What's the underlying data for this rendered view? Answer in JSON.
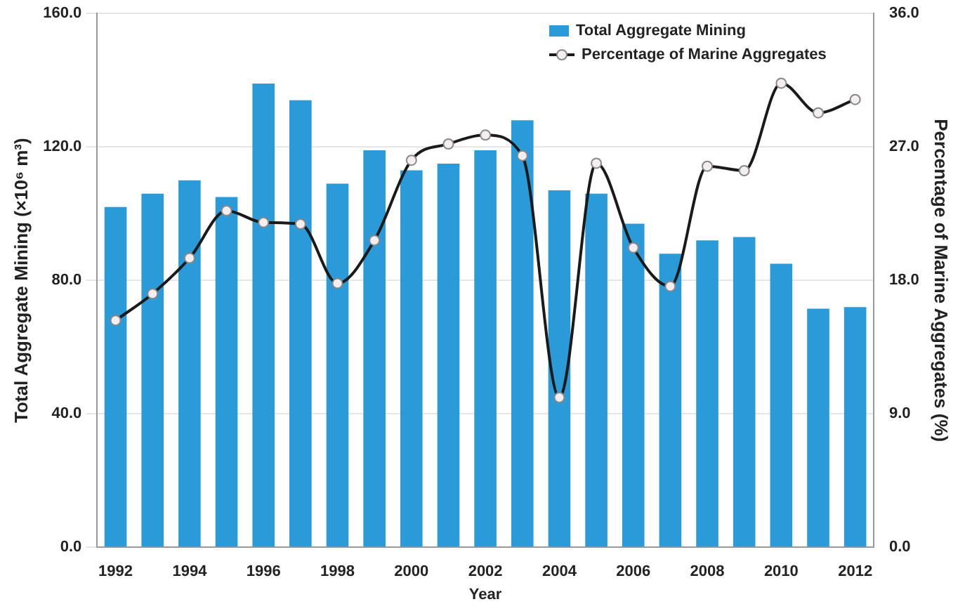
{
  "chart_data": {
    "type": "bar",
    "categories": [
      "1992",
      null,
      "1994",
      null,
      "1996",
      null,
      "1998",
      null,
      "2000",
      null,
      "2002",
      null,
      "2004",
      null,
      "2006",
      null,
      "2008",
      null,
      "2010",
      null,
      "2012"
    ],
    "series": [
      {
        "name": "Total Aggregate Mining",
        "color": "#2a9ad8",
        "values": [
          102,
          106,
          110,
          105,
          139,
          134,
          109,
          119,
          113,
          115,
          119,
          128,
          107,
          106,
          97,
          88,
          92,
          93,
          85,
          71.5,
          72
        ]
      },
      {
        "name": "Percentage of Marine Aggregates",
        "type": "line",
        "axis": "y2",
        "color": "#1a1a1a",
        "values": [
          15.3,
          17.1,
          19.5,
          22.7,
          21.9,
          21.8,
          17.8,
          20.7,
          26.1,
          27.2,
          27.8,
          26.4,
          10.1,
          25.9,
          20.2,
          17.6,
          25.7,
          25.4,
          31.3,
          29.3,
          30.2
        ]
      }
    ],
    "xlabel": "Year",
    "ylabel": "Total Aggregate Mining (×10⁶ m³)",
    "y2label": "Percentage of Marine Aggregates (%)",
    "ylim": [
      0,
      160
    ],
    "yticks": [
      {
        "value": 0,
        "label": "0.0"
      },
      {
        "value": 40,
        "label": "40.0"
      },
      {
        "value": 80,
        "label": "80.0"
      },
      {
        "value": 120,
        "label": "120.0"
      },
      {
        "value": 160,
        "label": "160.0"
      }
    ],
    "y2lim": [
      0,
      36
    ],
    "y2ticks": [
      {
        "value": 0,
        "label": "0.0"
      },
      {
        "value": 9,
        "label": "9.0"
      },
      {
        "value": 18,
        "label": "18.0"
      },
      {
        "value": 27,
        "label": "27.0"
      },
      {
        "value": 36,
        "label": "36.0"
      }
    ],
    "grid": "y",
    "legend": "top right",
    "marker": "circle",
    "line_style": "solid"
  }
}
